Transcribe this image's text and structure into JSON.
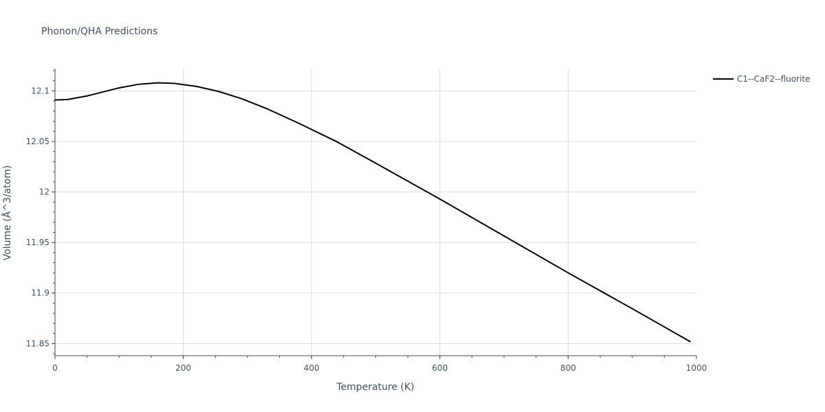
{
  "chart_data": {
    "type": "line",
    "title": "Phonon/QHA Predictions",
    "xlabel": "Temperature (K)",
    "ylabel": "Volume (Å^3/atom)",
    "xlim": [
      0,
      1000
    ],
    "ylim": [
      11.838,
      12.122
    ],
    "x_ticks": [
      0,
      200,
      400,
      600,
      800,
      1000
    ],
    "x_tick_labels": [
      "0",
      "200",
      "400",
      "600",
      "800",
      "1000"
    ],
    "y_ticks": [
      11.85,
      11.9,
      11.95,
      12.0,
      12.05,
      12.1
    ],
    "y_tick_labels": [
      "11.85",
      "11.9",
      "11.95",
      "12",
      "12.05",
      "12.1"
    ],
    "grid": true,
    "legend_position": "top-right",
    "colors": {
      "line": "#000000",
      "grid": "#dcdcdc",
      "text": "#3f4f63"
    },
    "series": [
      {
        "name": "C1--CaF2--fluorite",
        "x": [
          0,
          20,
          50,
          100,
          130,
          160,
          185,
          220,
          255,
          290,
          330,
          380,
          440,
          500,
          600,
          700,
          800,
          900,
          990
        ],
        "y": [
          12.091,
          12.0915,
          12.095,
          12.103,
          12.1065,
          12.108,
          12.1075,
          12.1045,
          12.0995,
          12.0925,
          12.0825,
          12.068,
          12.0495,
          12.0285,
          11.993,
          11.9565,
          11.92,
          11.8845,
          11.852
        ]
      }
    ]
  }
}
